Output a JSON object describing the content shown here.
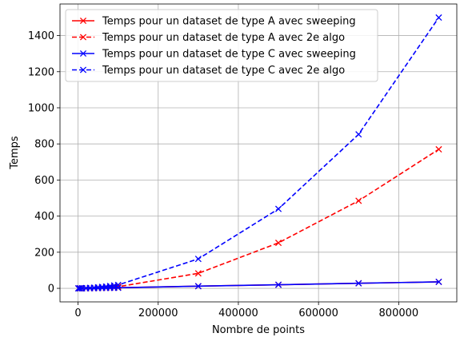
{
  "chart_data": {
    "type": "line",
    "title": "",
    "xlabel": "Nombre de points",
    "ylabel": "Temps",
    "xlim": [
      -45000,
      945000
    ],
    "ylim": [
      -75,
      1575
    ],
    "xticks": [
      0,
      200000,
      400000,
      600000,
      800000
    ],
    "xtick_labels": [
      "0",
      "200000",
      "400000",
      "600000",
      "800000"
    ],
    "yticks": [
      0,
      200,
      400,
      600,
      800,
      1000,
      1200,
      1400
    ],
    "ytick_labels": [
      "0",
      "200",
      "400",
      "600",
      "800",
      "1000",
      "1200",
      "1400"
    ],
    "grid": true,
    "legend_position": "top-left",
    "x": [
      1000,
      5000,
      10000,
      20000,
      30000,
      40000,
      50000,
      60000,
      70000,
      80000,
      90000,
      100000,
      300000,
      500000,
      700000,
      900000
    ],
    "series": [
      {
        "name": "Temps pour un dataset de type A avec sweeping",
        "color": "#ff0000",
        "linestyle": "solid",
        "marker": "x",
        "values": [
          0.03,
          0.15,
          0.3,
          0.6,
          0.9,
          1.2,
          1.6,
          1.9,
          2.2,
          2.6,
          2.9,
          3.3,
          12,
          20,
          28,
          36
        ]
      },
      {
        "name": "Temps pour un dataset de type A avec 2e algo",
        "color": "#ff0000",
        "linestyle": "dashed",
        "marker": "x",
        "values": [
          0,
          0.1,
          0.2,
          0.5,
          0.9,
          1.5,
          2.3,
          3.3,
          4.5,
          5.9,
          7.4,
          9.1,
          83,
          252,
          485,
          770
        ]
      },
      {
        "name": "Temps pour un dataset de type C avec sweeping",
        "color": "#0000ff",
        "linestyle": "solid",
        "marker": "x",
        "values": [
          0.03,
          0.15,
          0.3,
          0.6,
          0.9,
          1.2,
          1.6,
          1.9,
          2.2,
          2.6,
          2.9,
          3.3,
          12,
          20,
          28,
          36
        ]
      },
      {
        "name": "Temps pour un dataset de type C avec 2e algo",
        "color": "#0000ff",
        "linestyle": "dashed",
        "marker": "x",
        "values": [
          0,
          0.2,
          0.5,
          1.5,
          2.5,
          4,
          6,
          8,
          10,
          13,
          16,
          19,
          163,
          440,
          853,
          1500
        ]
      }
    ]
  }
}
